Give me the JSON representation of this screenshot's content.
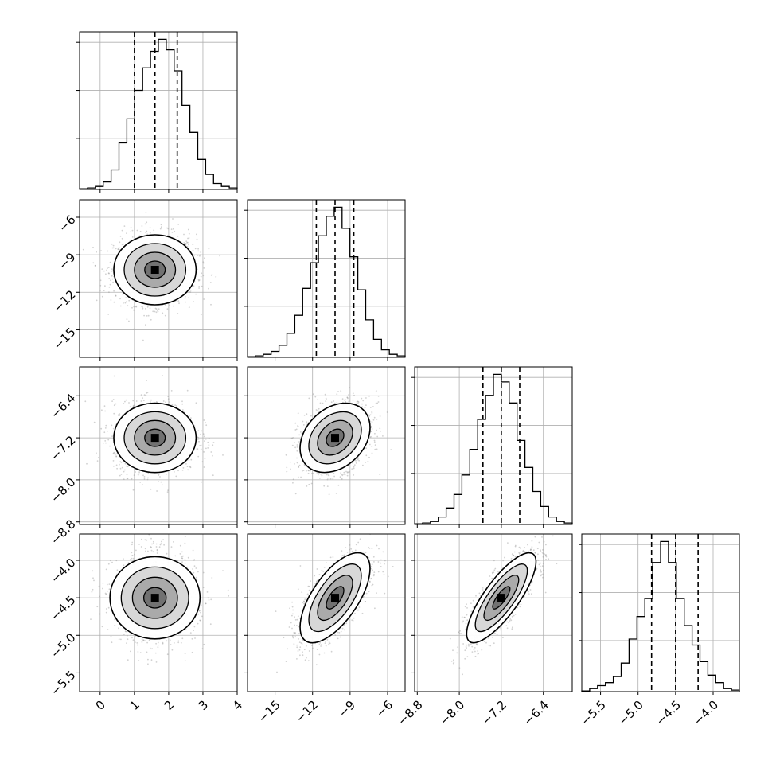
{
  "chart_data": {
    "type": "corner",
    "grid": true,
    "parameters": [
      {
        "range": [
          -0.6,
          4.0
        ],
        "ticks": [
          0,
          1,
          2,
          3,
          4
        ],
        "tick_labels": [
          "0",
          "1",
          "2",
          "3",
          "4"
        ],
        "mean": 1.6,
        "sigma": 0.6,
        "quantiles": [
          1.0,
          1.6,
          2.25
        ]
      },
      {
        "range": [
          -17.2,
          -4.6
        ],
        "ticks": [
          -15,
          -12,
          -9,
          -6
        ],
        "tick_labels": [
          "−15",
          "−12",
          "−9",
          "−6"
        ],
        "mean": -10.2,
        "sigma": 1.4,
        "quantiles": [
          -11.7,
          -10.2,
          -8.7
        ]
      },
      {
        "range": [
          -8.85,
          -5.85
        ],
        "ticks": [
          -8.8,
          -8.0,
          -7.2,
          -6.4
        ],
        "tick_labels": [
          "−8.8",
          "−8.0",
          "−7.2",
          "−6.4"
        ],
        "mean": -7.2,
        "sigma": 0.33,
        "quantiles": [
          -7.55,
          -7.2,
          -6.85
        ]
      },
      {
        "range": [
          -5.75,
          -3.65
        ],
        "ticks": [
          -5.5,
          -5.0,
          -4.5,
          -4.0
        ],
        "tick_labels": [
          "−5.5",
          "−5.0",
          "−4.5",
          "−4.0"
        ],
        "mean": -4.5,
        "sigma": 0.3,
        "quantiles": [
          -4.82,
          -4.5,
          -4.2
        ]
      }
    ],
    "histograms": [
      [
        0.005,
        0.01,
        0.02,
        0.05,
        0.13,
        0.31,
        0.47,
        0.66,
        0.81,
        0.92,
        1.0,
        0.93,
        0.79,
        0.56,
        0.38,
        0.2,
        0.1,
        0.04,
        0.02,
        0.01
      ],
      [
        0.005,
        0.01,
        0.02,
        0.04,
        0.08,
        0.16,
        0.28,
        0.46,
        0.63,
        0.81,
        0.94,
        1.0,
        0.86,
        0.67,
        0.45,
        0.25,
        0.12,
        0.05,
        0.02,
        0.01
      ],
      [
        0.005,
        0.01,
        0.02,
        0.05,
        0.11,
        0.2,
        0.33,
        0.5,
        0.7,
        0.86,
        1.0,
        0.95,
        0.81,
        0.56,
        0.38,
        0.22,
        0.12,
        0.05,
        0.02,
        0.01
      ],
      [
        0.005,
        0.02,
        0.04,
        0.06,
        0.1,
        0.19,
        0.35,
        0.5,
        0.62,
        0.86,
        1.0,
        0.86,
        0.62,
        0.44,
        0.31,
        0.2,
        0.11,
        0.06,
        0.02,
        0.01
      ]
    ],
    "correlations": [
      [
        1.0,
        0.0,
        0.0,
        0.0
      ],
      [
        0.0,
        1.0,
        0.3,
        0.65
      ],
      [
        0.0,
        0.3,
        1.0,
        0.8
      ],
      [
        0.0,
        0.65,
        0.8,
        1.0
      ]
    ]
  }
}
